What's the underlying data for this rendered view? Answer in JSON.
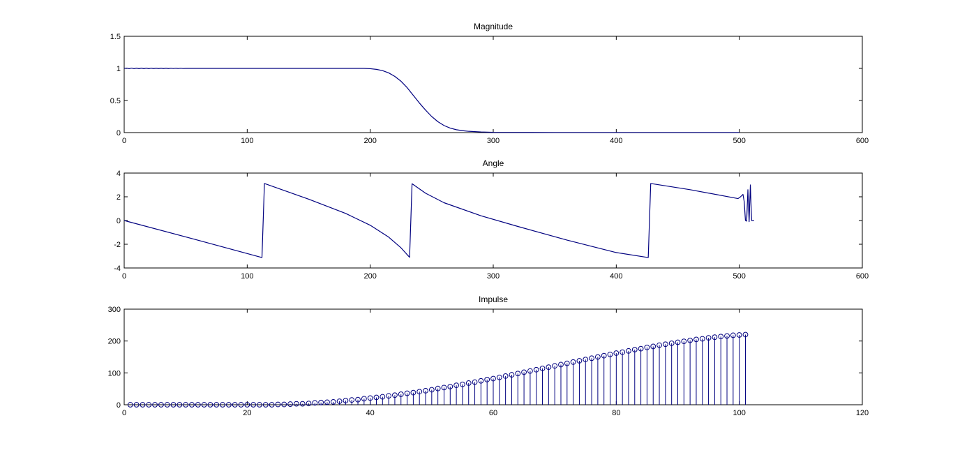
{
  "chart_data": [
    {
      "type": "line",
      "title": "Magnitude",
      "xlim": [
        0,
        600
      ],
      "ylim": [
        0,
        1.5
      ],
      "xticks": [
        0,
        100,
        200,
        300,
        400,
        500,
        600
      ],
      "yticks": [
        0,
        0.5,
        1,
        1.5
      ],
      "xtick_labels": [
        "0",
        "100",
        "200",
        "300",
        "400",
        "500",
        "600"
      ],
      "ytick_labels": [
        "0",
        "0.5",
        "1",
        "1.5"
      ],
      "grid": false,
      "color": "#00007f",
      "series": [
        {
          "x": [
            0,
            2,
            4,
            6,
            8,
            10,
            12,
            14,
            16,
            18,
            20,
            22,
            24,
            26,
            28,
            30,
            32,
            34,
            36,
            38,
            40,
            42,
            44,
            46,
            48,
            50,
            60,
            80,
            100,
            120,
            140,
            160,
            180,
            195,
            200,
            205,
            210,
            215,
            220,
            225,
            230,
            235,
            240,
            245,
            250,
            255,
            260,
            265,
            270,
            275,
            280,
            290,
            300,
            350,
            400,
            450,
            500
          ],
          "y": [
            1.0,
            1.005,
            0.995,
            1.005,
            0.995,
            1.004,
            0.996,
            1.004,
            0.996,
            1.004,
            0.996,
            1.003,
            0.997,
            1.003,
            0.997,
            1.003,
            0.997,
            1.003,
            0.997,
            1.002,
            0.998,
            1.002,
            0.998,
            1.002,
            0.998,
            1.0,
            1.0,
            1.0,
            1.0,
            1.0,
            1.0,
            1.0,
            1.0,
            1.0,
            0.995,
            0.985,
            0.965,
            0.93,
            0.875,
            0.8,
            0.7,
            0.58,
            0.46,
            0.35,
            0.25,
            0.17,
            0.11,
            0.07,
            0.045,
            0.03,
            0.02,
            0.01,
            0.005,
            0.002,
            0.002,
            0.002,
            0.002
          ]
        }
      ]
    },
    {
      "type": "line",
      "title": "Angle",
      "xlim": [
        0,
        600
      ],
      "ylim": [
        -4,
        4
      ],
      "xticks": [
        0,
        100,
        200,
        300,
        400,
        500,
        600
      ],
      "yticks": [
        -4,
        -2,
        0,
        2,
        4
      ],
      "xtick_labels": [
        "0",
        "100",
        "200",
        "300",
        "400",
        "500",
        "600"
      ],
      "ytick_labels": [
        "-4",
        "-2",
        "0",
        "2",
        "4"
      ],
      "grid": false,
      "color": "#00007f",
      "series": [
        {
          "x": [
            0,
            56,
            112,
            114,
            150,
            180,
            200,
            215,
            225,
            232,
            234,
            245,
            260,
            290,
            320,
            360,
            400,
            426,
            428,
            460,
            499,
            501,
            503,
            504,
            505,
            506,
            507,
            508,
            509,
            510,
            512
          ],
          "y": [
            0.0,
            -1.55,
            -3.12,
            3.12,
            1.8,
            0.6,
            -0.4,
            -1.4,
            -2.3,
            -3.1,
            3.1,
            2.3,
            1.5,
            0.4,
            -0.5,
            -1.65,
            -2.7,
            -3.12,
            3.12,
            2.6,
            1.85,
            2.0,
            2.2,
            1.6,
            0.0,
            -0.05,
            2.6,
            -0.1,
            3.0,
            0.0,
            0.0
          ]
        }
      ]
    },
    {
      "type": "stem",
      "title": "Impulse",
      "xlim": [
        0,
        120
      ],
      "ylim": [
        0,
        300
      ],
      "xticks": [
        0,
        20,
        40,
        60,
        80,
        100,
        120
      ],
      "yticks": [
        0,
        100,
        200,
        300
      ],
      "xtick_labels": [
        "0",
        "20",
        "40",
        "60",
        "80",
        "100",
        "120"
      ],
      "ytick_labels": [
        "0",
        "100",
        "200",
        "300"
      ],
      "grid": false,
      "color": "#00007f",
      "marker": "circle",
      "series": [
        {
          "x": [
            1,
            2,
            3,
            4,
            5,
            6,
            7,
            8,
            9,
            10,
            11,
            12,
            13,
            14,
            15,
            16,
            17,
            18,
            19,
            20,
            21,
            22,
            23,
            24,
            25,
            26,
            27,
            28,
            29,
            30,
            31,
            32,
            33,
            34,
            35,
            36,
            37,
            38,
            39,
            40,
            41,
            42,
            43,
            44,
            45,
            46,
            47,
            48,
            49,
            50,
            51,
            52,
            53,
            54,
            55,
            56,
            57,
            58,
            59,
            60,
            61,
            62,
            63,
            64,
            65,
            66,
            67,
            68,
            69,
            70,
            71,
            72,
            73,
            74,
            75,
            76,
            77,
            78,
            79,
            80,
            81,
            82,
            83,
            84,
            85,
            86,
            87,
            88,
            89,
            90,
            91,
            92,
            93,
            94,
            95,
            96,
            97,
            98,
            99,
            100,
            101
          ],
          "y": [
            0,
            0,
            0,
            0,
            0,
            0,
            0,
            0,
            0,
            0,
            0,
            0,
            0,
            0,
            0,
            0,
            0,
            0,
            0,
            0,
            0,
            0,
            0,
            0,
            1,
            1,
            2,
            3,
            3,
            4,
            6,
            7,
            8,
            9,
            11,
            13,
            15,
            16,
            19,
            21,
            23,
            25,
            28,
            30,
            33,
            36,
            38,
            41,
            44,
            47,
            51,
            54,
            57,
            61,
            64,
            68,
            71,
            75,
            79,
            82,
            86,
            90,
            94,
            98,
            102,
            106,
            110,
            114,
            118,
            122,
            126,
            130,
            134,
            138,
            142,
            146,
            150,
            154,
            158,
            162,
            165,
            169,
            173,
            176,
            180,
            183,
            187,
            190,
            193,
            196,
            199,
            202,
            205,
            207,
            210,
            212,
            214,
            216,
            218,
            219,
            220
          ]
        }
      ]
    }
  ]
}
